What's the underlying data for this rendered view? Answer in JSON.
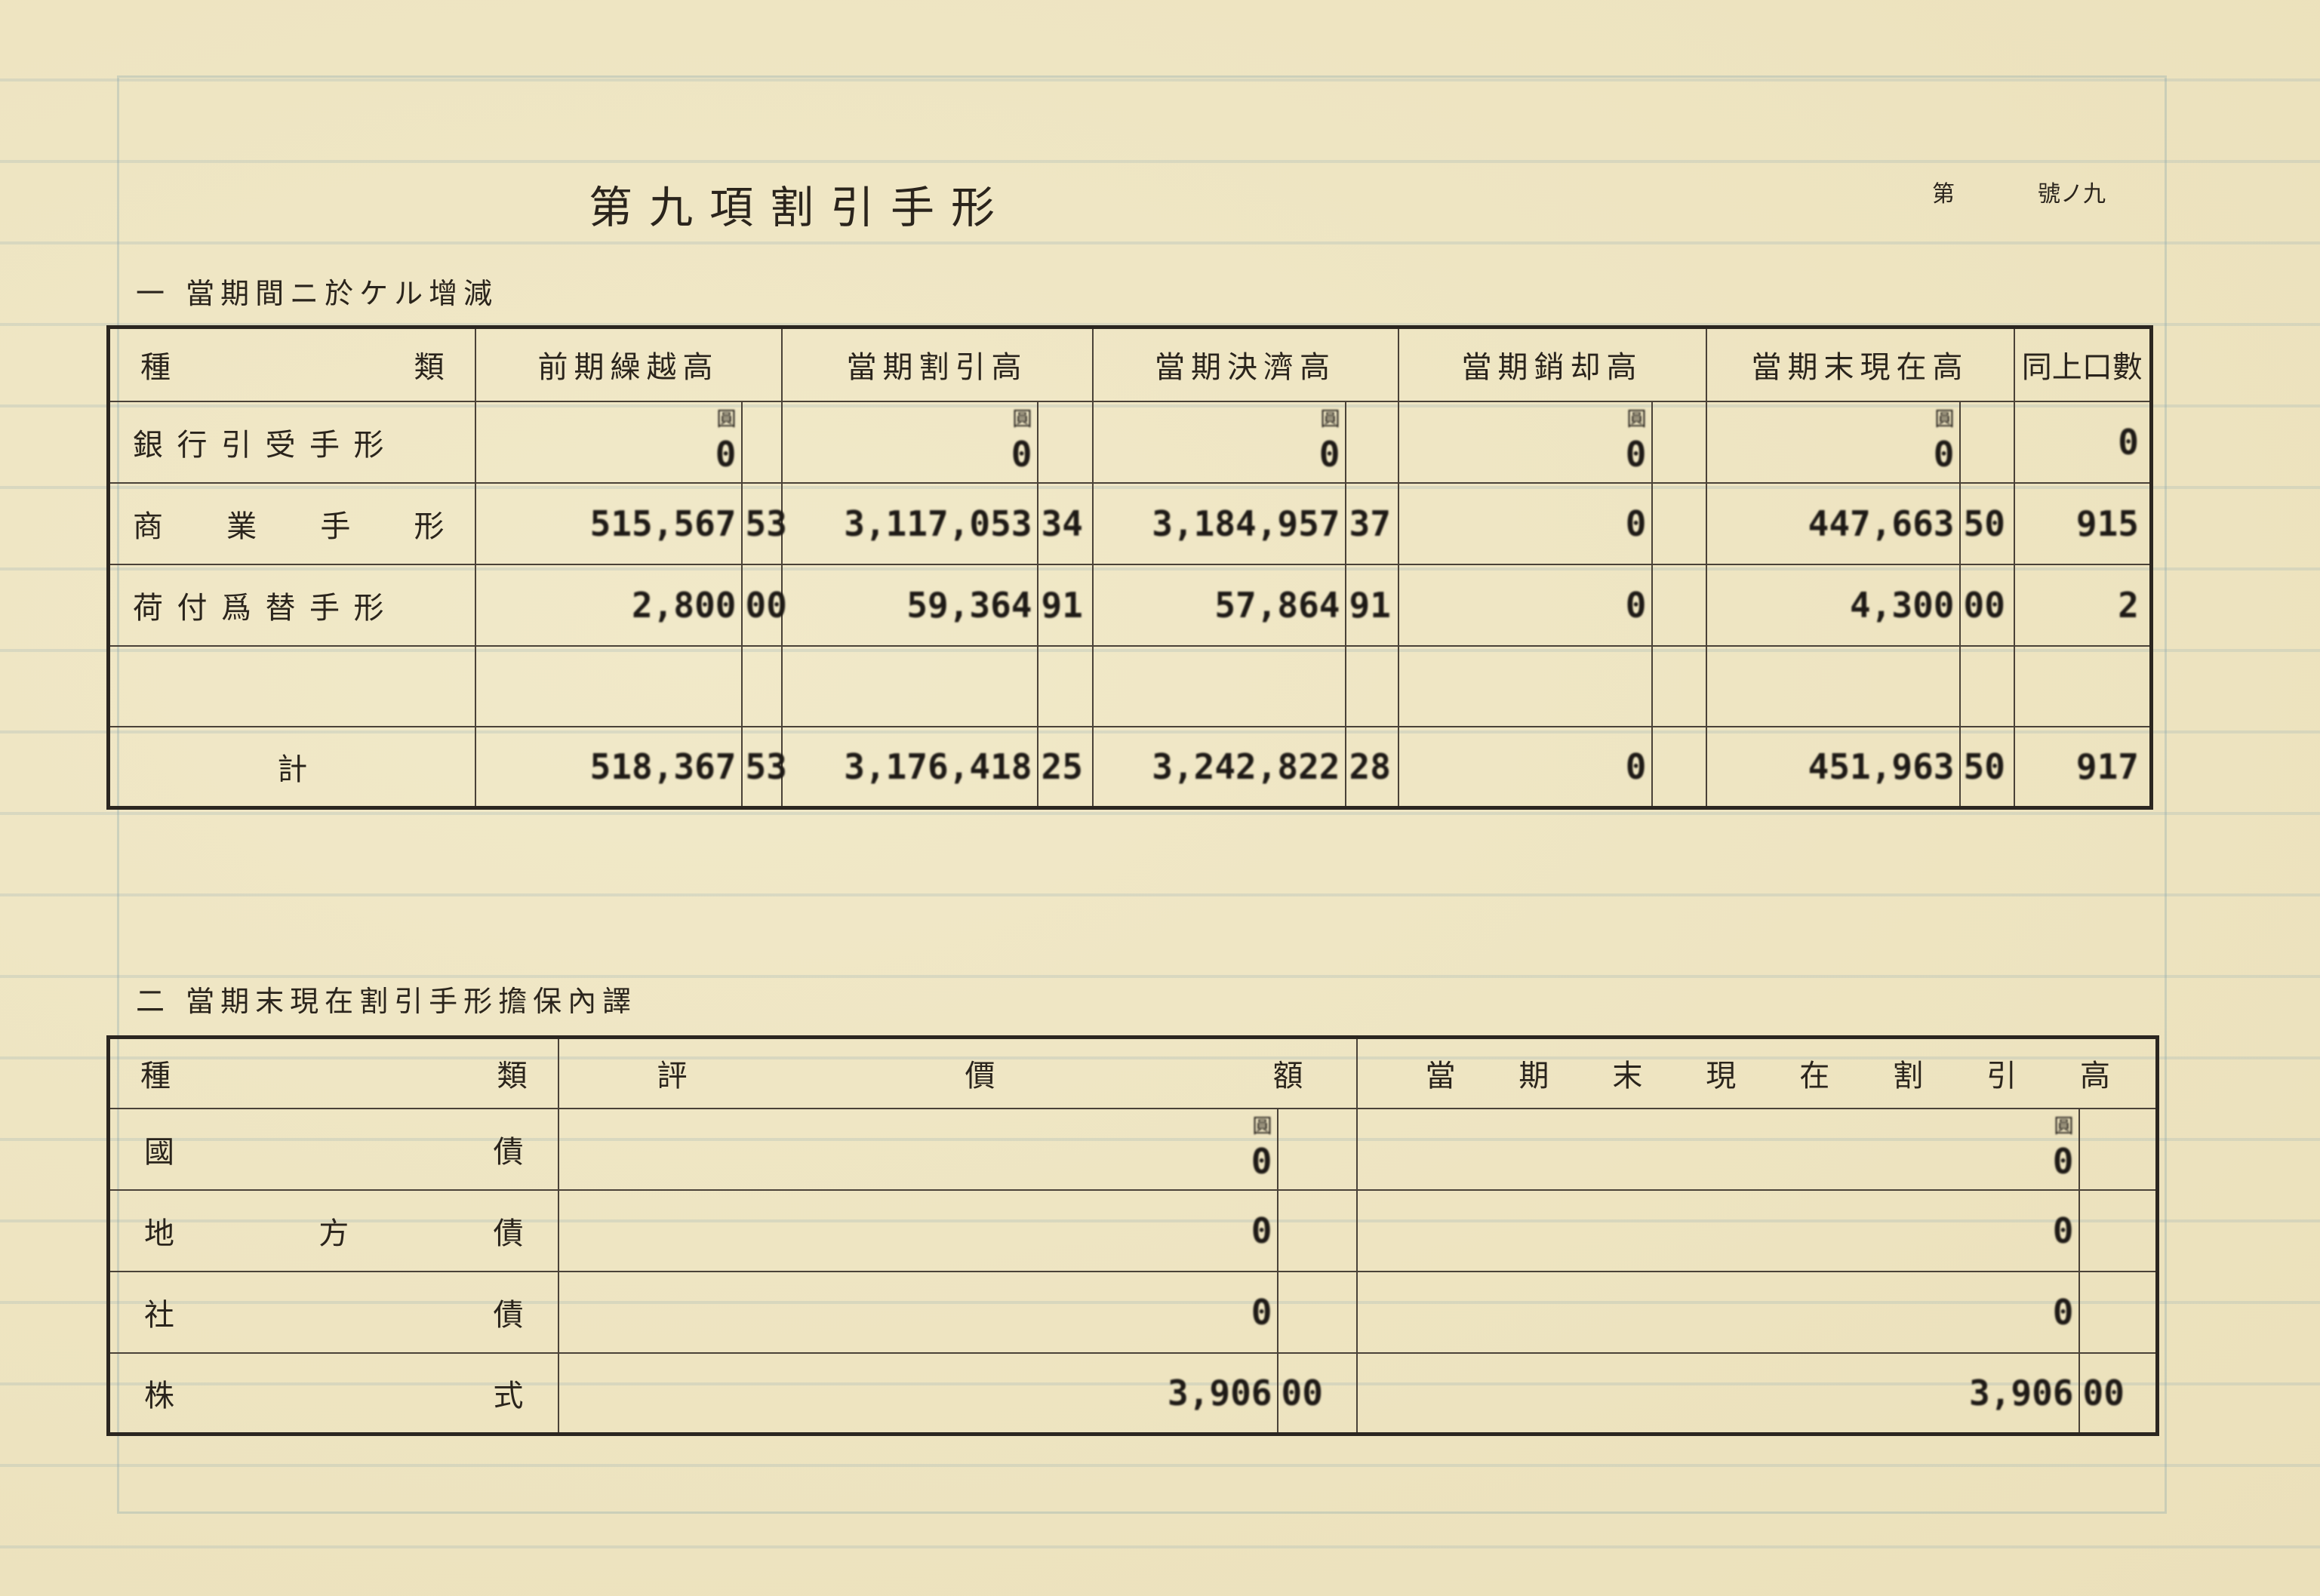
{
  "page_number": {
    "prefix": "第",
    "suffix": "號ノ九"
  },
  "title": "第九項割引手形",
  "section1": {
    "heading": "一 當期間ニ於ケル增減",
    "headers": [
      "種　類",
      "前期繰越高",
      "當期割引高",
      "當期決濟高",
      "當期銷却高",
      "當期末現在高",
      "同上口數"
    ],
    "type_header": [
      "種",
      "類"
    ],
    "currency_unit": "圓",
    "rows": [
      {
        "type": [
          "銀",
          "行",
          "引",
          "受",
          "手",
          "形"
        ],
        "values": [
          [
            "0",
            ""
          ],
          [
            "0",
            ""
          ],
          [
            "0",
            ""
          ],
          [
            "0",
            ""
          ],
          [
            "0",
            ""
          ]
        ],
        "count": "0"
      },
      {
        "type": [
          "商",
          "業",
          "手",
          "形"
        ],
        "values": [
          [
            "515,567",
            "53"
          ],
          [
            "3,117,053",
            "34"
          ],
          [
            "3,184,957",
            "37"
          ],
          [
            "0",
            ""
          ],
          [
            "447,663",
            "50"
          ]
        ],
        "count": "915"
      },
      {
        "type": [
          "荷",
          "付",
          "爲",
          "替",
          "手",
          "形"
        ],
        "values": [
          [
            "2,800",
            "00"
          ],
          [
            "59,364",
            "91"
          ],
          [
            "57,864",
            "91"
          ],
          [
            "0",
            ""
          ],
          [
            "4,300",
            "00"
          ]
        ],
        "count": "2"
      },
      {
        "type": [],
        "values": [
          [
            "",
            ""
          ],
          [
            "",
            ""
          ],
          [
            "",
            ""
          ],
          [
            "",
            ""
          ],
          [
            "",
            ""
          ]
        ],
        "count": ""
      },
      {
        "type": [
          "計"
        ],
        "values": [
          [
            "518,367",
            "53"
          ],
          [
            "3,176,418",
            "25"
          ],
          [
            "3,242,822",
            "28"
          ],
          [
            "0",
            ""
          ],
          [
            "451,963",
            "50"
          ]
        ],
        "count": "917"
      }
    ]
  },
  "section2": {
    "heading": "二 當期末現在割引手形擔保內譯",
    "type_header": [
      "種",
      "類"
    ],
    "value_header": [
      "評",
      "價",
      "額"
    ],
    "current_header": [
      "當",
      "期",
      "末",
      "現",
      "在",
      "割",
      "引",
      "高"
    ],
    "currency_unit": "圓",
    "rows": [
      {
        "type": [
          "國",
          "債"
        ],
        "value": [
          "0",
          ""
        ],
        "current": [
          "0",
          ""
        ]
      },
      {
        "type": [
          "地",
          "方",
          "債"
        ],
        "value": [
          "0",
          ""
        ],
        "current": [
          "0",
          ""
        ]
      },
      {
        "type": [
          "社",
          "債"
        ],
        "value": [
          "0",
          ""
        ],
        "current": [
          "0",
          ""
        ]
      },
      {
        "type": [
          "株",
          "式"
        ],
        "value": [
          "3,906",
          "00"
        ],
        "current": [
          "3,906",
          "00"
        ]
      }
    ]
  }
}
